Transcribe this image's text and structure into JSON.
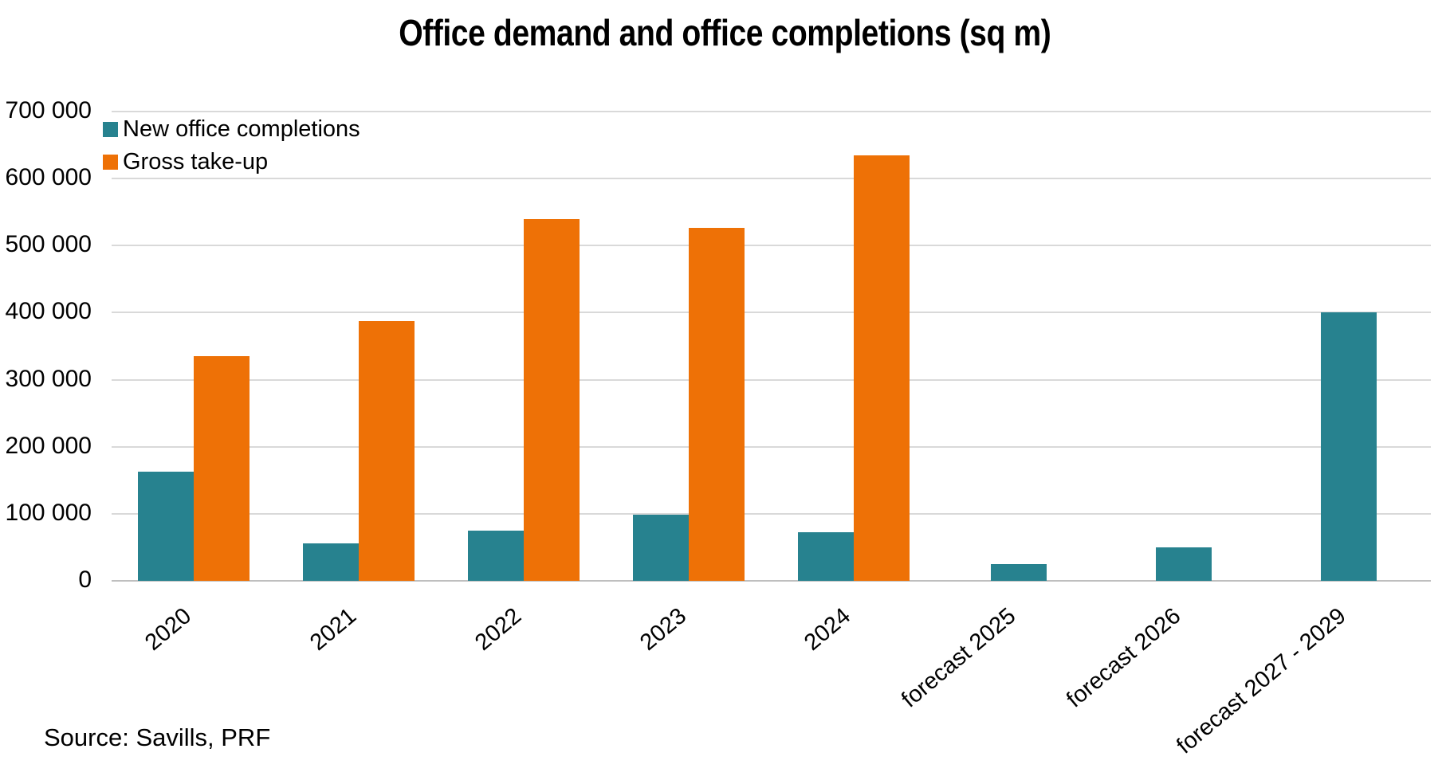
{
  "title": "Office demand and office completions (sq m)",
  "source": "Source: Savills, PRF",
  "chart_data": {
    "type": "bar",
    "categories": [
      "2020",
      "2021",
      "2022",
      "2023",
      "2024",
      "forecast 2025",
      "forecast 2026",
      "forecast 2027 - 2029"
    ],
    "series": [
      {
        "name": "New office completions",
        "color": "#27828F",
        "values": [
          163000,
          56000,
          75000,
          99000,
          73000,
          25000,
          50000,
          400000
        ]
      },
      {
        "name": "Gross take-up",
        "color": "#EE7106",
        "values": [
          335000,
          388000,
          540000,
          526000,
          635000,
          null,
          null,
          null
        ]
      }
    ],
    "ylim": [
      0,
      700000
    ],
    "ytick_step": 100000,
    "ytick_labels": [
      "0",
      "100 000",
      "200 000",
      "300 000",
      "400 000",
      "500 000",
      "600 000",
      "700 000"
    ],
    "grid": true,
    "gridline_color": "#d9d9d9",
    "legend_position": "top-left",
    "xlabel": "",
    "ylabel": ""
  }
}
